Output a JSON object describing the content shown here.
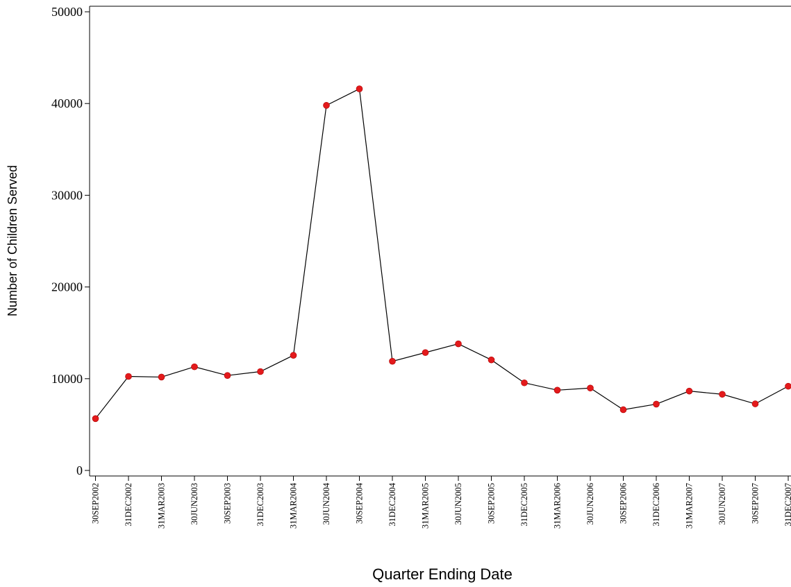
{
  "chart_data": {
    "type": "line",
    "title": "",
    "xlabel": "Quarter Ending Date",
    "ylabel": "Number of Children Served",
    "ylim": [
      0,
      50000
    ],
    "yticks": [
      0,
      10000,
      20000,
      30000,
      40000,
      50000
    ],
    "categories": [
      "30SEP2002",
      "31DEC2002",
      "31MAR2003",
      "30JUN2003",
      "30SEP2003",
      "31DEC2003",
      "31MAR2004",
      "30JUN2004",
      "30SEP2004",
      "31DEC2004",
      "31MAR2005",
      "30JUN2005",
      "30SEP2005",
      "31DEC2005",
      "31MAR2006",
      "30JUN2006",
      "30SEP2006",
      "31DEC2006",
      "31MAR2007",
      "30JUN2007",
      "30SEP2007",
      "31DEC2007"
    ],
    "series": [
      {
        "values": [
          5650,
          10250,
          10180,
          11300,
          10350,
          10780,
          12550,
          39800,
          41600,
          11900,
          12850,
          13800,
          12050,
          9550,
          8750,
          8980,
          6620,
          7230,
          8650,
          8300,
          7260,
          9180
        ],
        "line_color": "#000000",
        "marker_color": "#e31a1c"
      }
    ],
    "grid": false,
    "legend": "none"
  }
}
